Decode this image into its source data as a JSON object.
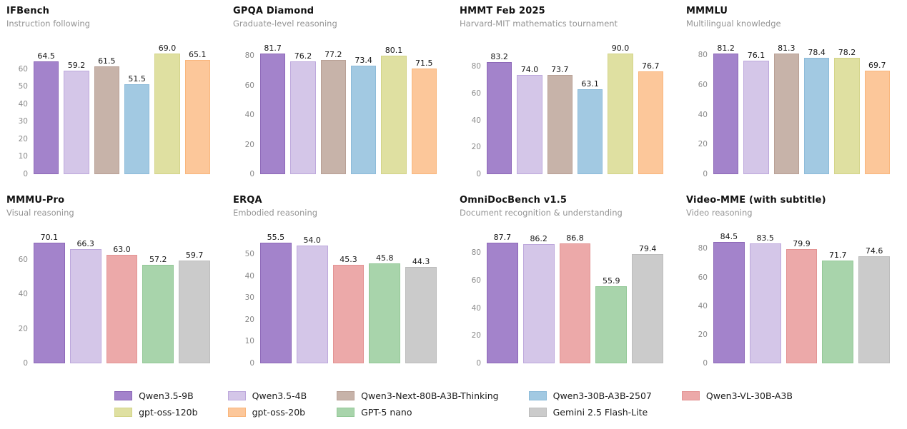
{
  "colors": {
    "background": "#ffffff",
    "title_text": "#121212",
    "subtitle_text": "#949494",
    "tick_text": "#8a8a8a",
    "value_text": "#161616"
  },
  "palette": {
    "Qwen3.5-9B": {
      "fill": "#a383cb",
      "edge": "#8d68b8"
    },
    "Qwen3.5-4B": {
      "fill": "#d4c6e8",
      "edge": "#bda8dc"
    },
    "Qwen3-Next-80B-A3B-Thinking": {
      "fill": "#c7b3a9",
      "edge": "#b8a095"
    },
    "Qwen3-30B-A3B-2507": {
      "fill": "#a2c9e2",
      "edge": "#8dbbd9"
    },
    "Qwen3-VL-30B-A3B": {
      "fill": "#eca9a9",
      "edge": "#e39494"
    },
    "gpt-oss-120b": {
      "fill": "#dfe0a1",
      "edge": "#d3d488"
    },
    "gpt-oss-20b": {
      "fill": "#fcc79a",
      "edge": "#f9b67c"
    },
    "GPT-5 nano": {
      "fill": "#a8d4ab",
      "edge": "#93c897"
    },
    "Gemini 2.5 Flash-Lite": {
      "fill": "#cbcbcb",
      "edge": "#bcbcbc"
    }
  },
  "chart_data": [
    {
      "type": "bar",
      "title": "IFBench",
      "subtitle": "Instruction following",
      "categories": [
        "Qwen3.5-9B",
        "Qwen3.5-4B",
        "Qwen3-Next-80B-A3B-Thinking",
        "Qwen3-30B-A3B-2507",
        "gpt-oss-120b",
        "gpt-oss-20b"
      ],
      "values": [
        64.5,
        59.2,
        61.5,
        51.5,
        69.0,
        65.1
      ],
      "yticks": [
        0,
        10,
        20,
        30,
        40,
        50,
        60
      ],
      "ylim": [
        0,
        72.5
      ],
      "grid": false,
      "value_labels": true
    },
    {
      "type": "bar",
      "title": "GPQA Diamond",
      "subtitle": "Graduate-level reasoning",
      "categories": [
        "Qwen3.5-9B",
        "Qwen3.5-4B",
        "Qwen3-Next-80B-A3B-Thinking",
        "Qwen3-30B-A3B-2507",
        "gpt-oss-120b",
        "gpt-oss-20b"
      ],
      "values": [
        81.7,
        76.2,
        77.2,
        73.4,
        80.1,
        71.5
      ],
      "yticks": [
        0,
        20,
        40,
        60,
        80
      ],
      "ylim": [
        0,
        85.8
      ],
      "grid": false,
      "value_labels": true
    },
    {
      "type": "bar",
      "title": "HMMT Feb 2025",
      "subtitle": "Harvard-MIT mathematics tournament",
      "categories": [
        "Qwen3.5-9B",
        "Qwen3.5-4B",
        "Qwen3-Next-80B-A3B-Thinking",
        "Qwen3-30B-A3B-2507",
        "gpt-oss-120b",
        "gpt-oss-20b"
      ],
      "values": [
        83.2,
        74.0,
        73.7,
        63.1,
        90.0,
        76.7
      ],
      "yticks": [
        0,
        20,
        40,
        60,
        80
      ],
      "ylim": [
        0,
        94.5
      ],
      "grid": false,
      "value_labels": true
    },
    {
      "type": "bar",
      "title": "MMMLU",
      "subtitle": "Multilingual knowledge",
      "categories": [
        "Qwen3.5-9B",
        "Qwen3.5-4B",
        "Qwen3-Next-80B-A3B-Thinking",
        "Qwen3-30B-A3B-2507",
        "gpt-oss-120b",
        "gpt-oss-20b"
      ],
      "values": [
        81.2,
        76.1,
        81.3,
        78.4,
        78.2,
        69.7
      ],
      "yticks": [
        0,
        20,
        40,
        60,
        80
      ],
      "ylim": [
        0,
        85.4
      ],
      "grid": false,
      "value_labels": true
    },
    {
      "type": "bar",
      "title": "MMMU-Pro",
      "subtitle": "Visual reasoning",
      "categories": [
        "Qwen3.5-9B",
        "Qwen3.5-4B",
        "Qwen3-VL-30B-A3B",
        "GPT-5 nano",
        "Gemini 2.5 Flash-Lite"
      ],
      "values": [
        70.1,
        66.3,
        63.0,
        57.2,
        59.7
      ],
      "yticks": [
        0,
        20,
        40,
        60
      ],
      "ylim": [
        0,
        73.6
      ],
      "grid": false,
      "value_labels": true
    },
    {
      "type": "bar",
      "title": "ERQA",
      "subtitle": "Embodied reasoning",
      "categories": [
        "Qwen3.5-9B",
        "Qwen3.5-4B",
        "Qwen3-VL-30B-A3B",
        "GPT-5 nano",
        "Gemini 2.5 Flash-Lite"
      ],
      "values": [
        55.5,
        54.0,
        45.3,
        45.8,
        44.3
      ],
      "yticks": [
        0,
        10,
        20,
        30,
        40,
        50
      ],
      "ylim": [
        0,
        58.3
      ],
      "grid": false,
      "value_labels": true
    },
    {
      "type": "bar",
      "title": "OmniDocBench v1.5",
      "subtitle": "Document recognition & understanding",
      "categories": [
        "Qwen3.5-9B",
        "Qwen3.5-4B",
        "Qwen3-VL-30B-A3B",
        "GPT-5 nano",
        "Gemini 2.5 Flash-Lite"
      ],
      "values": [
        87.7,
        86.2,
        86.8,
        55.9,
        79.4
      ],
      "yticks": [
        0,
        20,
        40,
        60,
        80
      ],
      "ylim": [
        0,
        92.1
      ],
      "grid": false,
      "value_labels": true
    },
    {
      "type": "bar",
      "title": "Video-MME (with subtitle)",
      "subtitle": "Video reasoning",
      "categories": [
        "Qwen3.5-9B",
        "Qwen3.5-4B",
        "Qwen3-VL-30B-A3B",
        "GPT-5 nano",
        "Gemini 2.5 Flash-Lite"
      ],
      "values": [
        84.5,
        83.5,
        79.9,
        71.7,
        74.6
      ],
      "yticks": [
        0,
        20,
        40,
        60,
        80
      ],
      "ylim": [
        0,
        88.7
      ],
      "grid": false,
      "value_labels": true
    }
  ],
  "legend": {
    "position": "bottom-center",
    "columns": [
      [
        "Qwen3.5-9B",
        "gpt-oss-120b"
      ],
      [
        "Qwen3.5-4B",
        "gpt-oss-20b"
      ],
      [
        "Qwen3-Next-80B-A3B-Thinking",
        "GPT-5 nano"
      ],
      [
        "Qwen3-30B-A3B-2507",
        "Gemini 2.5 Flash-Lite"
      ],
      [
        "Qwen3-VL-30B-A3B"
      ]
    ]
  }
}
